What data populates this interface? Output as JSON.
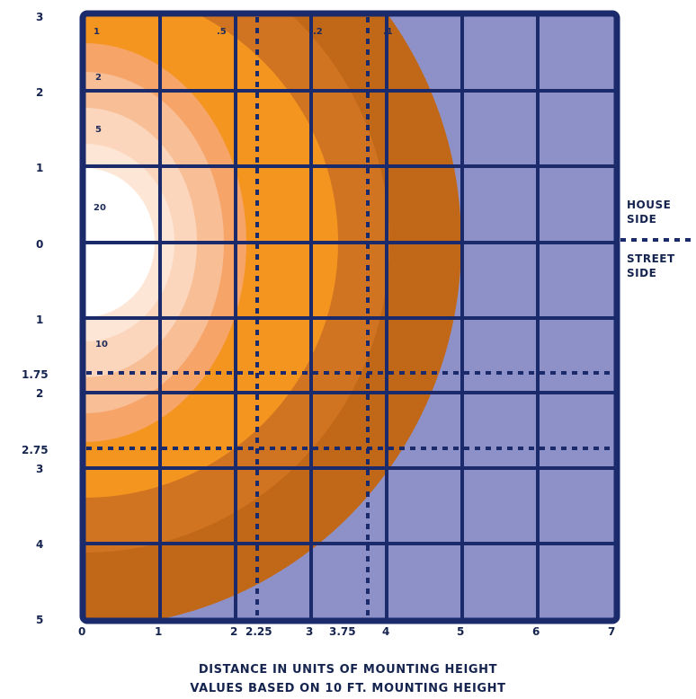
{
  "colors": {
    "grid": "#1b2a6b",
    "background": "#8e91c8",
    "contours": [
      "#c16818",
      "#d07422",
      "#f4951f",
      "#f6a468",
      "#f8be96",
      "#fbd6bd",
      "#fde6d6",
      "#ffffff"
    ]
  },
  "y_labels": [
    "3",
    "2",
    "1",
    "0",
    "1",
    "2",
    "3",
    "4",
    "5"
  ],
  "y_marker_labels": [
    "1.75",
    "2.75"
  ],
  "x_labels": [
    "0",
    "1",
    "2",
    "3",
    "4",
    "5",
    "6",
    "7"
  ],
  "x_marker_labels": [
    "2.25",
    "3.75"
  ],
  "contour_labels": [
    "1",
    "2",
    "5",
    "20",
    "10",
    ".5",
    ".2",
    ".1"
  ],
  "side_labels": {
    "house_line1": "HOUSE",
    "house_line2": "SIDE",
    "street_line1": "STREET",
    "street_line2": "SIDE"
  },
  "caption": {
    "line1": "DISTANCE IN UNITS OF MOUNTING HEIGHT",
    "line2": "VALUES BASED ON 10 FT. MOUNTING HEIGHT"
  }
}
